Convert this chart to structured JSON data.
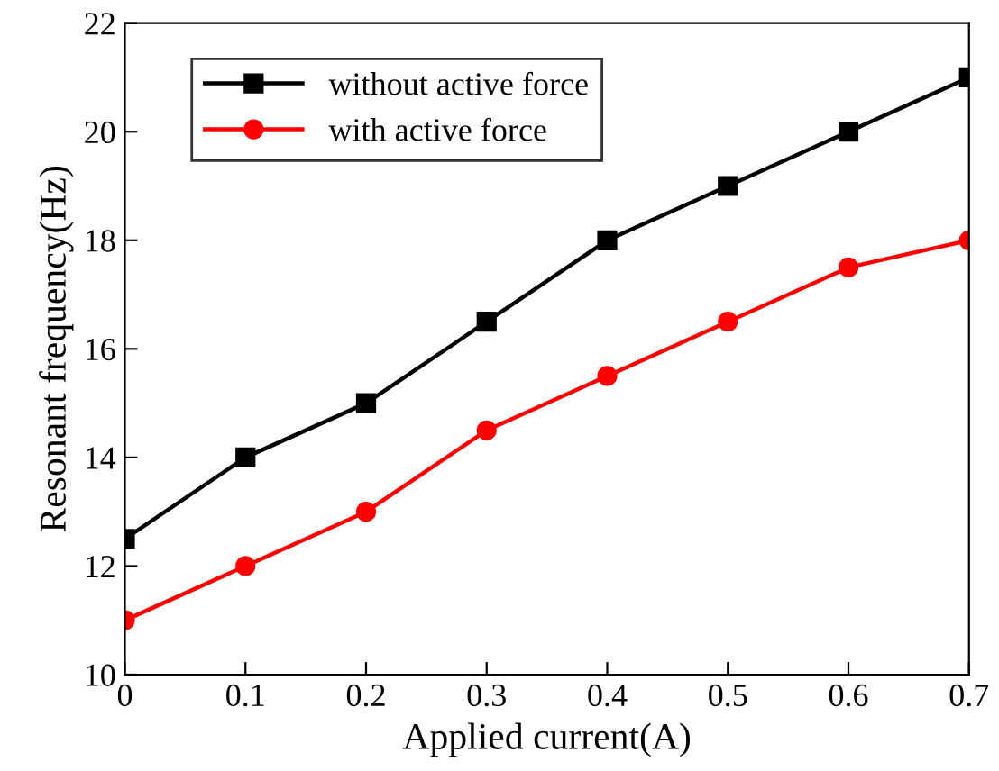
{
  "chart_data": {
    "type": "line",
    "xlabel": "Applied current(A)",
    "ylabel": "Resonant frequency(Hz)",
    "x": [
      0,
      0.1,
      0.2,
      0.3,
      0.4,
      0.5,
      0.6,
      0.7
    ],
    "series": [
      {
        "name": "without active force",
        "color": "#000000",
        "marker": "square",
        "values": [
          12.5,
          14,
          15,
          16.5,
          18,
          19,
          20,
          21
        ]
      },
      {
        "name": "with active force",
        "color": "#ff0000",
        "marker": "circle",
        "values": [
          11,
          12,
          13,
          14.5,
          15.5,
          16.5,
          17.5,
          18
        ]
      }
    ],
    "xlim": [
      0,
      0.7
    ],
    "xticks": [
      0,
      0.1,
      0.2,
      0.3,
      0.4,
      0.5,
      0.6,
      0.7
    ],
    "ylim": [
      10,
      22
    ],
    "yticks": [
      10,
      12,
      14,
      16,
      18,
      20,
      22
    ],
    "grid": false,
    "legend": "top left",
    "line_style": "solid"
  }
}
